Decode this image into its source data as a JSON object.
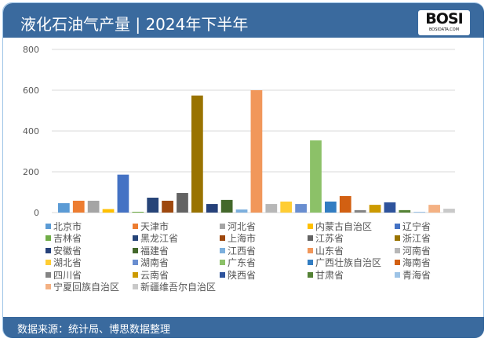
{
  "header": {
    "title": "液化石油气产量 | 2024年下半年",
    "logo_text": "BOSI",
    "logo_sub": "BOSIDATA.COM"
  },
  "footer": {
    "source": "数据来源：统计局、博思数据整理"
  },
  "chart_data": {
    "type": "bar",
    "title": "液化石油气产量 | 2024年下半年",
    "xlabel": "",
    "ylabel": "",
    "ylim": [
      0,
      800
    ],
    "yticks": [
      "0",
      "200",
      "400",
      "600",
      "800"
    ],
    "grid": true,
    "legend_position": "bottom",
    "categories": [
      "北京市",
      "天津市",
      "河北省",
      "内蒙古自治区",
      "辽宁省",
      "吉林省",
      "黑龙江省",
      "上海市",
      "江苏省",
      "浙江省",
      "安徽省",
      "福建省",
      "江西省",
      "山东省",
      "河南省",
      "湖北省",
      "湖南省",
      "广东省",
      "广西壮族自治区",
      "海南省",
      "四川省",
      "云南省",
      "陕西省",
      "甘肃省",
      "青海省",
      "宁夏回族自治区",
      "新疆维吾尔自治区"
    ],
    "values": [
      46,
      58,
      58,
      17,
      186,
      4,
      73,
      58,
      96,
      574,
      42,
      62,
      15,
      600,
      42,
      54,
      42,
      354,
      54,
      81,
      12,
      38,
      50,
      12,
      4,
      38,
      19
    ],
    "colors": [
      "#5b9bd5",
      "#ed7d31",
      "#a5a5a5",
      "#ffc000",
      "#4472c4",
      "#70ad47",
      "#264478",
      "#9e480e",
      "#636363",
      "#997300",
      "#26417a",
      "#43682b",
      "#7cafdd",
      "#f1975a",
      "#b7b7b7",
      "#ffcd33",
      "#698ed0",
      "#8cc168",
      "#327dc2",
      "#d26012",
      "#848484",
      "#cc9a00",
      "#2e539c",
      "#548235",
      "#9dc3e6",
      "#f4b183",
      "#c9c9c9"
    ]
  }
}
